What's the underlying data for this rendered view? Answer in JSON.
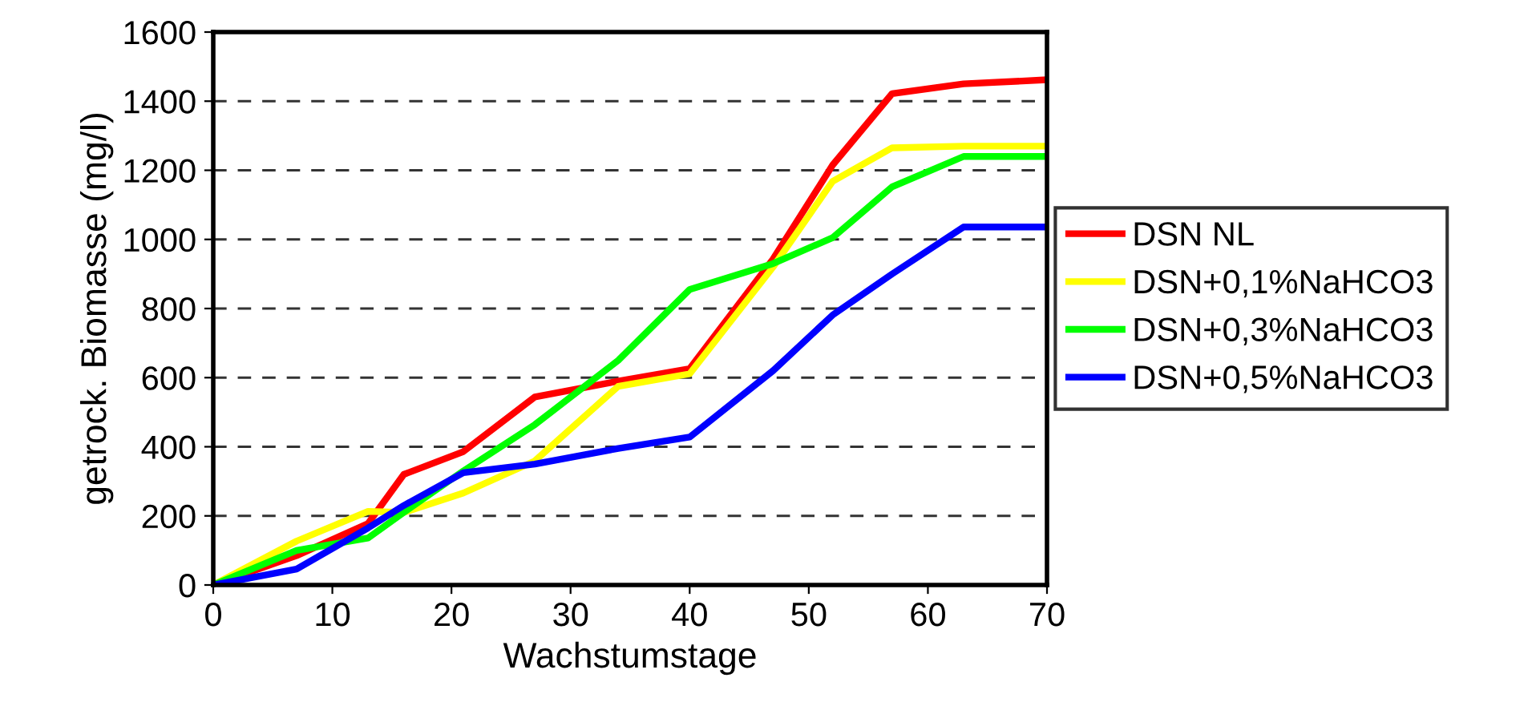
{
  "chart_data": {
    "type": "line",
    "xlabel": "Wachstumstage",
    "ylabel": "getrock. Biomasse (mg/l)",
    "x": [
      0,
      7,
      13,
      16,
      21,
      27,
      34,
      40,
      47,
      52,
      57,
      63,
      70
    ],
    "series": [
      {
        "name": "DSN NL",
        "color": "#ff0000",
        "values": [
          0,
          85,
          178,
          320,
          386,
          544,
          590,
          626,
          943,
          1215,
          1422,
          1450,
          1462
        ]
      },
      {
        "name": "DSN+0,1%NaHCO3",
        "color": "#ffff00",
        "values": [
          0,
          127,
          213,
          210,
          266,
          359,
          575,
          611,
          920,
          1168,
          1265,
          1270,
          1270
        ]
      },
      {
        "name": "DSN+0,3%NaHCO3",
        "color": "#00ff00",
        "values": [
          0,
          100,
          136,
          210,
          330,
          464,
          650,
          855,
          930,
          1005,
          1152,
          1240,
          1240
        ]
      },
      {
        "name": "DSN+0,5%NaHCO3",
        "color": "#0000ff",
        "values": [
          0,
          46,
          165,
          230,
          325,
          350,
          395,
          428,
          620,
          781,
          900,
          1036,
          1036
        ]
      }
    ],
    "xlim": [
      0,
      70
    ],
    "xticks": [
      0,
      10,
      20,
      30,
      40,
      50,
      60,
      70
    ],
    "ylim": [
      0,
      1600
    ],
    "yticks": [
      0,
      200,
      400,
      600,
      800,
      1000,
      1200,
      1400,
      1600
    ],
    "grid": "y",
    "legend": "right",
    "marker": "none",
    "line_style": "solid"
  }
}
